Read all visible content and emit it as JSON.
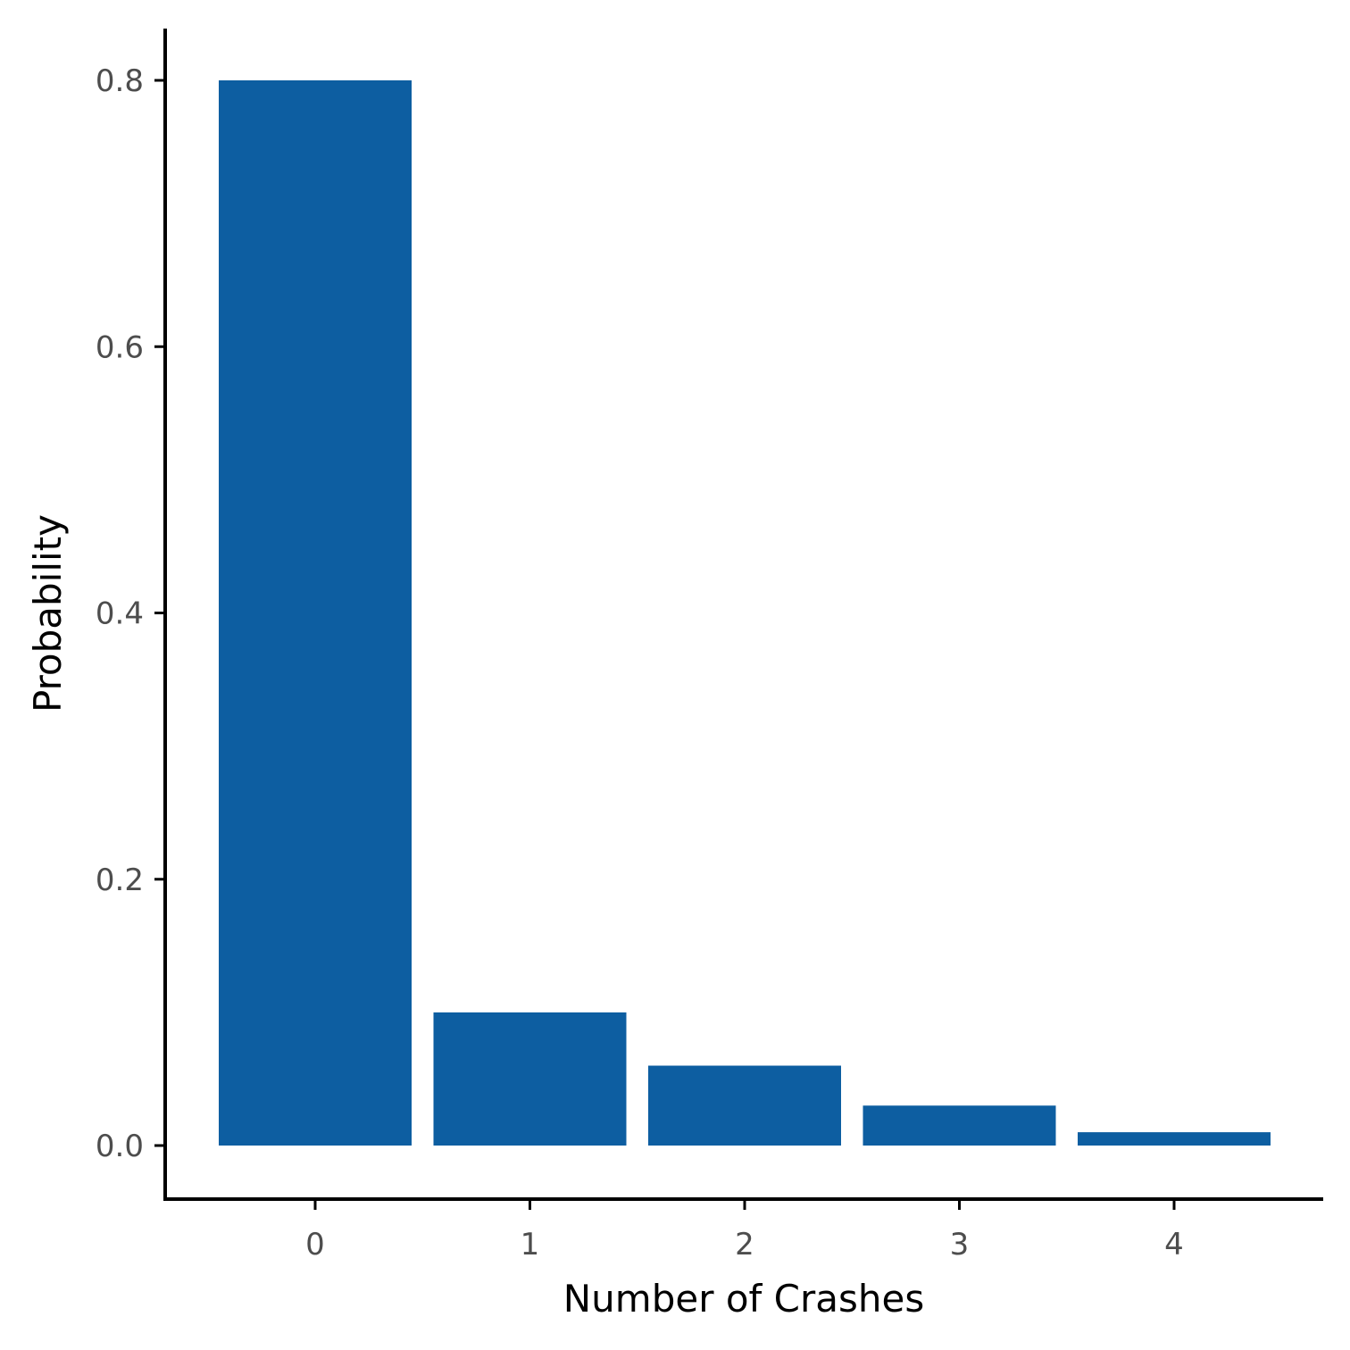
{
  "chart_data": {
    "type": "bar",
    "title": "",
    "xlabel": "Number of Crashes",
    "ylabel": "Probability",
    "categories": [
      "0",
      "1",
      "2",
      "3",
      "4"
    ],
    "values": [
      0.8,
      0.1,
      0.06,
      0.03,
      0.01
    ],
    "ylim": [
      -0.04,
      0.84
    ],
    "yticks": [
      0.0,
      0.2,
      0.4,
      0.6,
      0.8
    ],
    "ytick_labels": [
      "0.0",
      "0.2",
      "0.4",
      "0.6",
      "0.8"
    ],
    "grid": false,
    "legend": "none",
    "bar_color": "#0d5ea1"
  }
}
